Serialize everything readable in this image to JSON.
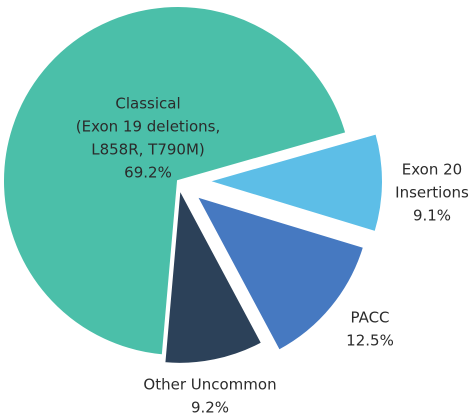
{
  "chart_data": {
    "type": "pie",
    "categories": [
      [
        "Classical",
        "(Exon 19 deletions,",
        "L858R, T790M)"
      ],
      [
        "Exon 20",
        "Insertions"
      ],
      [
        "PACC"
      ],
      [
        "Other Uncommon"
      ]
    ],
    "values": [
      69.2,
      9.1,
      12.5,
      9.2
    ],
    "value_labels": [
      "69.2%",
      "9.1%",
      "12.5%",
      "9.2%"
    ],
    "colors": [
      "#4bbfa9",
      "#5dbee7",
      "#4679c1",
      "#2c4159"
    ]
  }
}
